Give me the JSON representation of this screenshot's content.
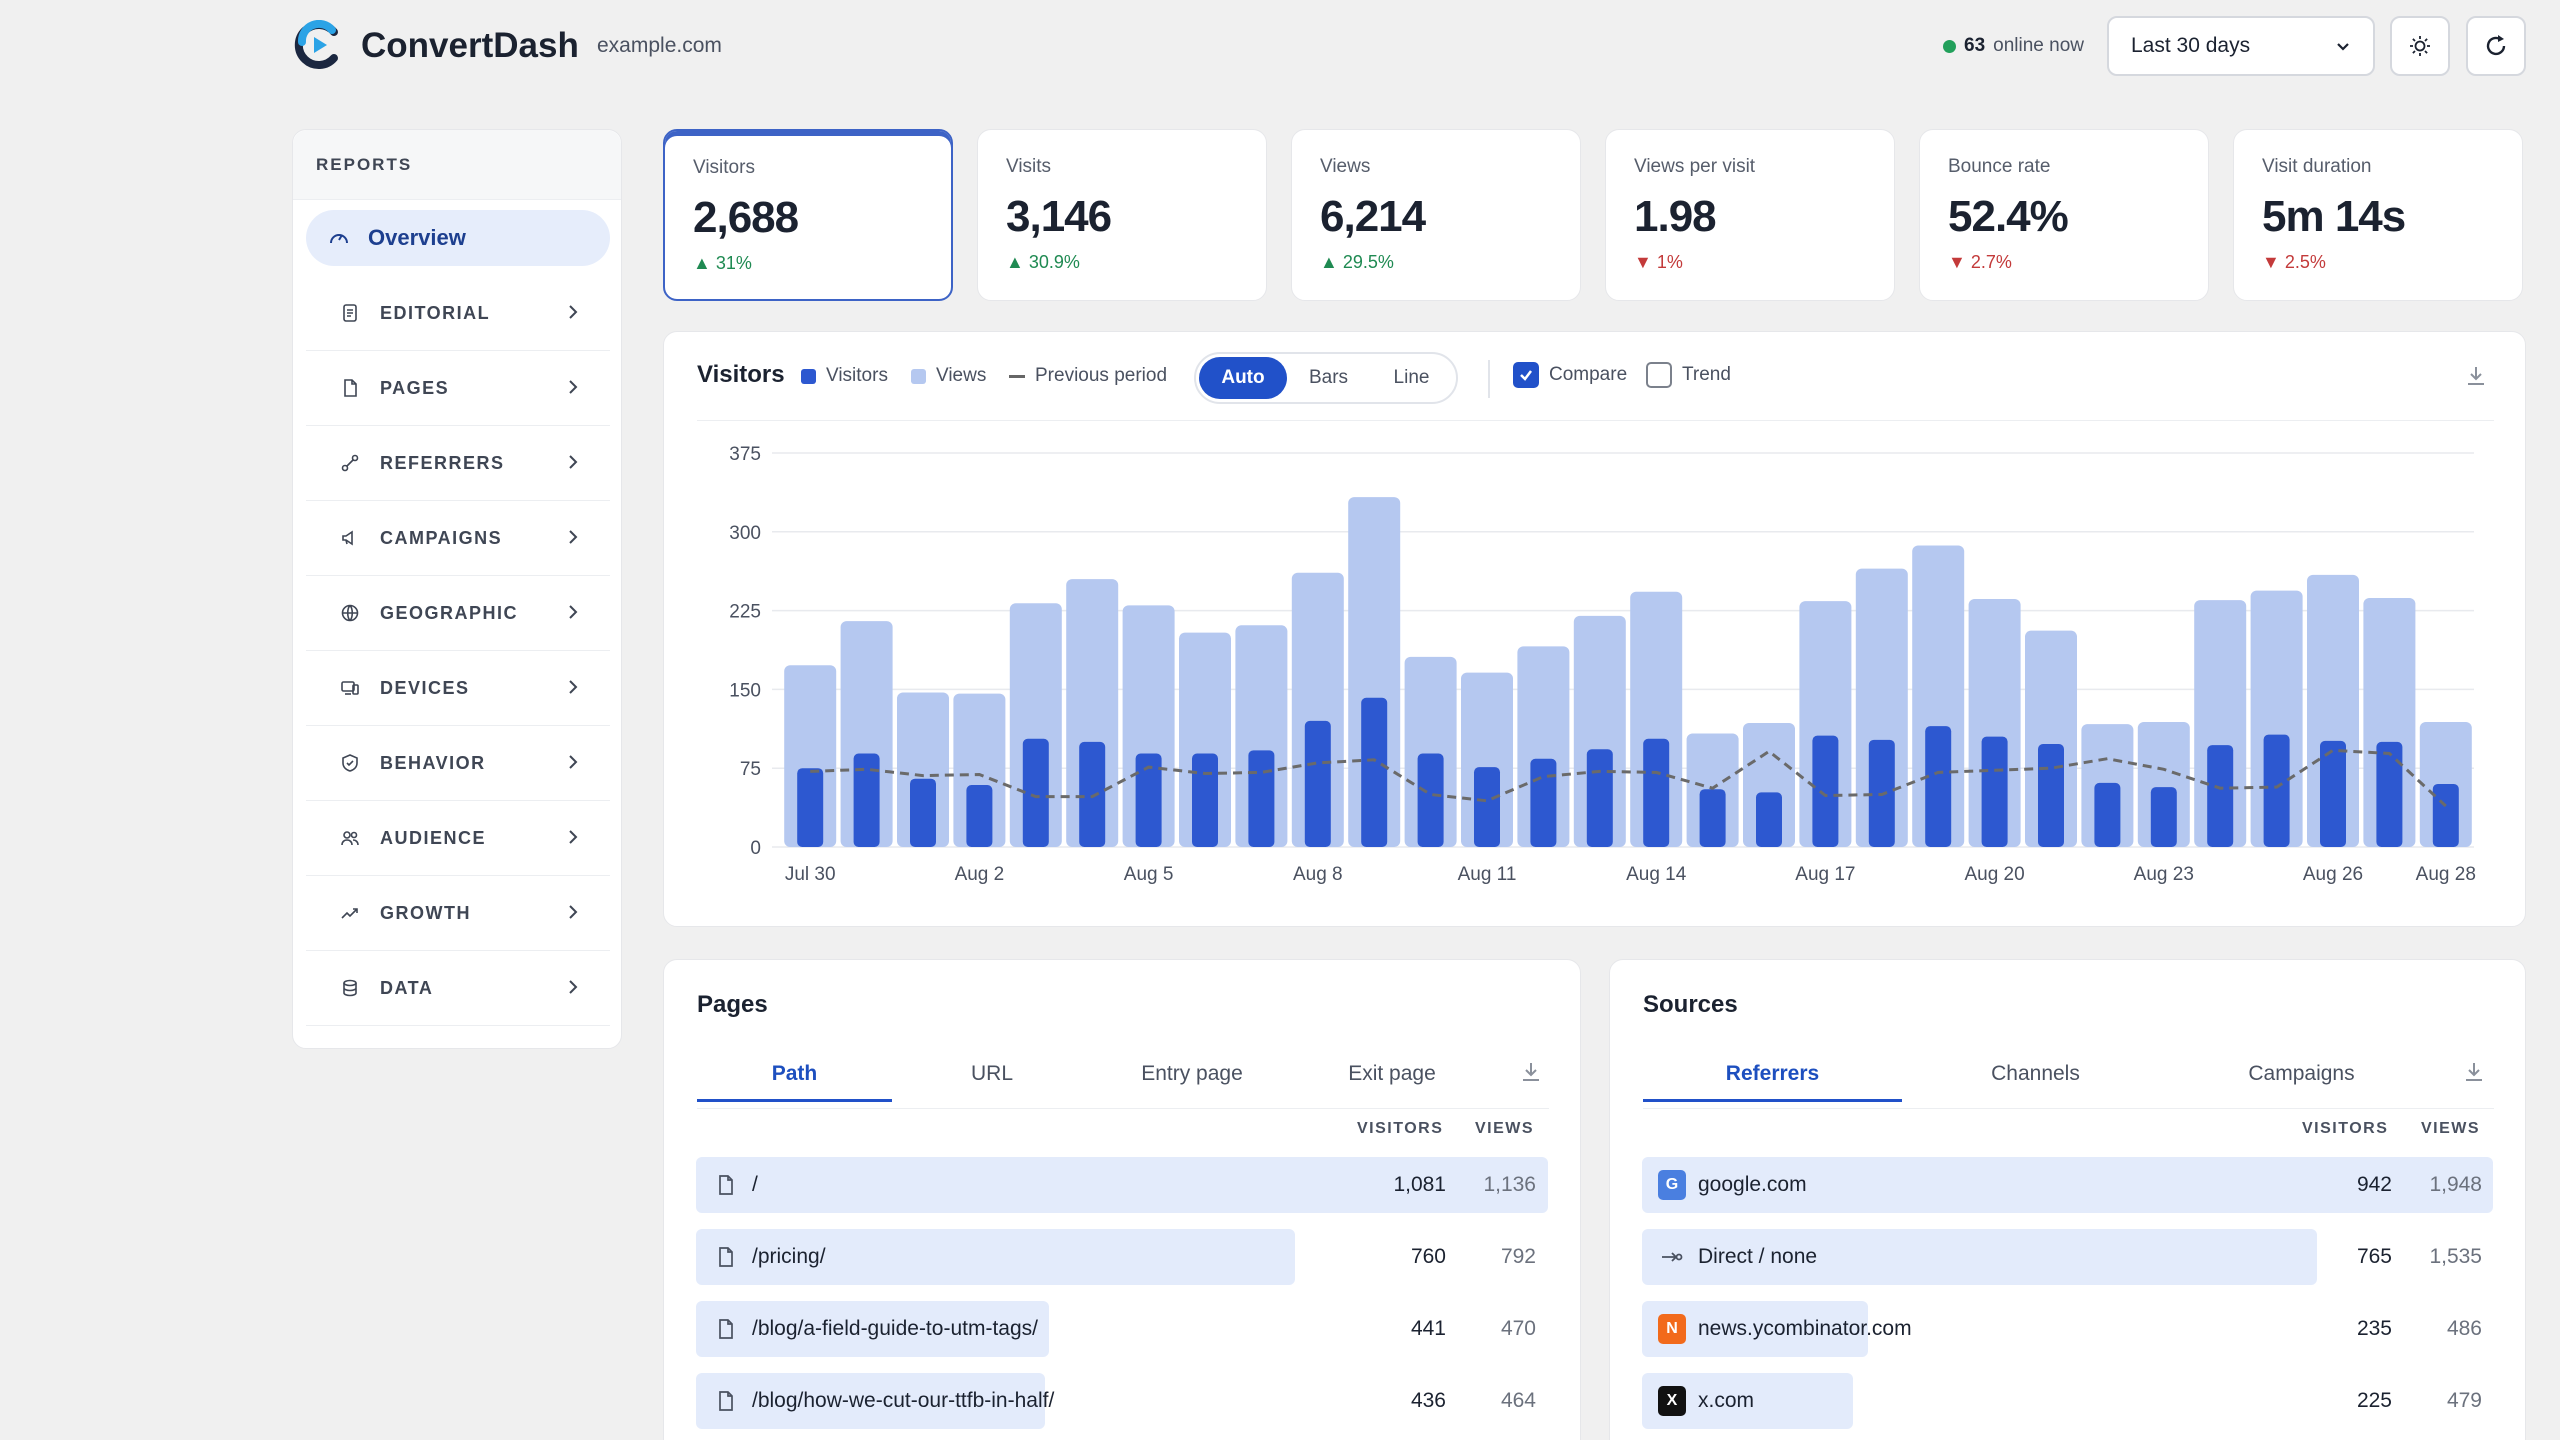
{
  "header": {
    "app_name": "ConvertDash",
    "domain": "example.com",
    "online_count": "63",
    "online_label": "online now",
    "range": "Last 30 days",
    "accent": "#2151c9"
  },
  "sidebar": {
    "heading": "REPORTS",
    "overview": "Overview",
    "items": [
      {
        "label": "EDITORIAL",
        "icon": "document-icon"
      },
      {
        "label": "PAGES",
        "icon": "page-icon"
      },
      {
        "label": "REFERRERS",
        "icon": "link-icon"
      },
      {
        "label": "CAMPAIGNS",
        "icon": "megaphone-icon"
      },
      {
        "label": "GEOGRAPHIC",
        "icon": "globe-icon"
      },
      {
        "label": "DEVICES",
        "icon": "devices-icon"
      },
      {
        "label": "BEHAVIOR",
        "icon": "shield-icon"
      },
      {
        "label": "AUDIENCE",
        "icon": "users-icon"
      },
      {
        "label": "GROWTH",
        "icon": "trend-icon"
      },
      {
        "label": "DATA",
        "icon": "database-icon"
      }
    ]
  },
  "stats": [
    {
      "label": "Visitors",
      "value": "2,688",
      "delta": "31%",
      "dir": "up"
    },
    {
      "label": "Visits",
      "value": "3,146",
      "delta": "30.9%",
      "dir": "up"
    },
    {
      "label": "Views",
      "value": "6,214",
      "delta": "29.5%",
      "dir": "up"
    },
    {
      "label": "Views per visit",
      "value": "1.98",
      "delta": "1%",
      "dir": "down"
    },
    {
      "label": "Bounce rate",
      "value": "52.4%",
      "delta": "2.7%",
      "dir": "down"
    },
    {
      "label": "Visit duration",
      "value": "5m 14s",
      "delta": "2.5%",
      "dir": "down"
    }
  ],
  "chart": {
    "title": "Visitors",
    "legend": {
      "visitors": "Visitors",
      "views": "Views",
      "previous": "Previous period"
    },
    "modes": [
      "Auto",
      "Bars",
      "Line"
    ],
    "compare": "Compare",
    "trend": "Trend"
  },
  "chart_data": {
    "type": "bar",
    "categories": [
      "Jul 30",
      "Jul 31",
      "Aug 1",
      "Aug 2",
      "Aug 3",
      "Aug 4",
      "Aug 5",
      "Aug 6",
      "Aug 7",
      "Aug 8",
      "Aug 9",
      "Aug 10",
      "Aug 11",
      "Aug 12",
      "Aug 13",
      "Aug 14",
      "Aug 15",
      "Aug 16",
      "Aug 17",
      "Aug 18",
      "Aug 19",
      "Aug 20",
      "Aug 21",
      "Aug 22",
      "Aug 23",
      "Aug 24",
      "Aug 25",
      "Aug 26",
      "Aug 27",
      "Aug 28"
    ],
    "tick_labels": [
      "Jul 30",
      "Aug 2",
      "Aug 5",
      "Aug 8",
      "Aug 11",
      "Aug 14",
      "Aug 17",
      "Aug 20",
      "Aug 23",
      "Aug 26",
      "Aug 28"
    ],
    "series": [
      {
        "name": "Views",
        "values": [
          173,
          215,
          147,
          146,
          232,
          255,
          230,
          204,
          211,
          261,
          333,
          181,
          166,
          191,
          220,
          243,
          108,
          118,
          234,
          265,
          287,
          236,
          206,
          117,
          119,
          235,
          244,
          259,
          237,
          119
        ],
        "color": "#b5c8f0"
      },
      {
        "name": "Visitors",
        "values": [
          75,
          89,
          65,
          59,
          103,
          100,
          89,
          89,
          92,
          120,
          142,
          89,
          76,
          84,
          93,
          103,
          55,
          52,
          106,
          102,
          115,
          105,
          98,
          61,
          57,
          97,
          107,
          101,
          100,
          60
        ],
        "color": "#2d58d0"
      },
      {
        "name": "Previous period",
        "values": [
          72,
          74,
          68,
          69,
          48,
          48,
          76,
          70,
          71,
          80,
          83,
          50,
          44,
          67,
          72,
          71,
          56,
          91,
          49,
          50,
          71,
          73,
          75,
          84,
          74,
          56,
          57,
          92,
          89,
          39
        ],
        "color": "#6a6a6a"
      }
    ],
    "yticks": [
      0,
      75,
      150,
      225,
      300,
      375
    ],
    "ylim": [
      0,
      375
    ]
  },
  "pages": {
    "title": "Pages",
    "tabs": [
      "Path",
      "URL",
      "Entry page",
      "Exit page"
    ],
    "col_visitors": "VISITORS",
    "col_views": "VIEWS",
    "rows": [
      {
        "label": "/",
        "visitors": "1,081",
        "views": "1,136",
        "share": 1.0
      },
      {
        "label": "/pricing/",
        "visitors": "760",
        "views": "792",
        "share": 0.703
      },
      {
        "label": "/blog/a-field-guide-to-utm-tags/",
        "visitors": "441",
        "views": "470",
        "share": 0.414
      },
      {
        "label": "/blog/how-we-cut-our-ttfb-in-half/",
        "visitors": "436",
        "views": "464",
        "share": 0.41
      }
    ]
  },
  "sources": {
    "title": "Sources",
    "tabs": [
      "Referrers",
      "Channels",
      "Campaigns"
    ],
    "col_visitors": "VISITORS",
    "col_views": "VIEWS",
    "rows": [
      {
        "label": "google.com",
        "visitors": "942",
        "views": "1,948",
        "share": 1.0,
        "fav": "G",
        "fav_color": "#4a7fe0"
      },
      {
        "label": "Direct / none",
        "visitors": "765",
        "views": "1,535",
        "share": 0.793,
        "fav": "",
        "fav_color": ""
      },
      {
        "label": "news.ycombinator.com",
        "visitors": "235",
        "views": "486",
        "share": 0.265,
        "fav": "N",
        "fav_color": "#f26a1b"
      },
      {
        "label": "x.com",
        "visitors": "225",
        "views": "479",
        "share": 0.248,
        "fav": "X",
        "fav_color": "#111111"
      }
    ]
  }
}
